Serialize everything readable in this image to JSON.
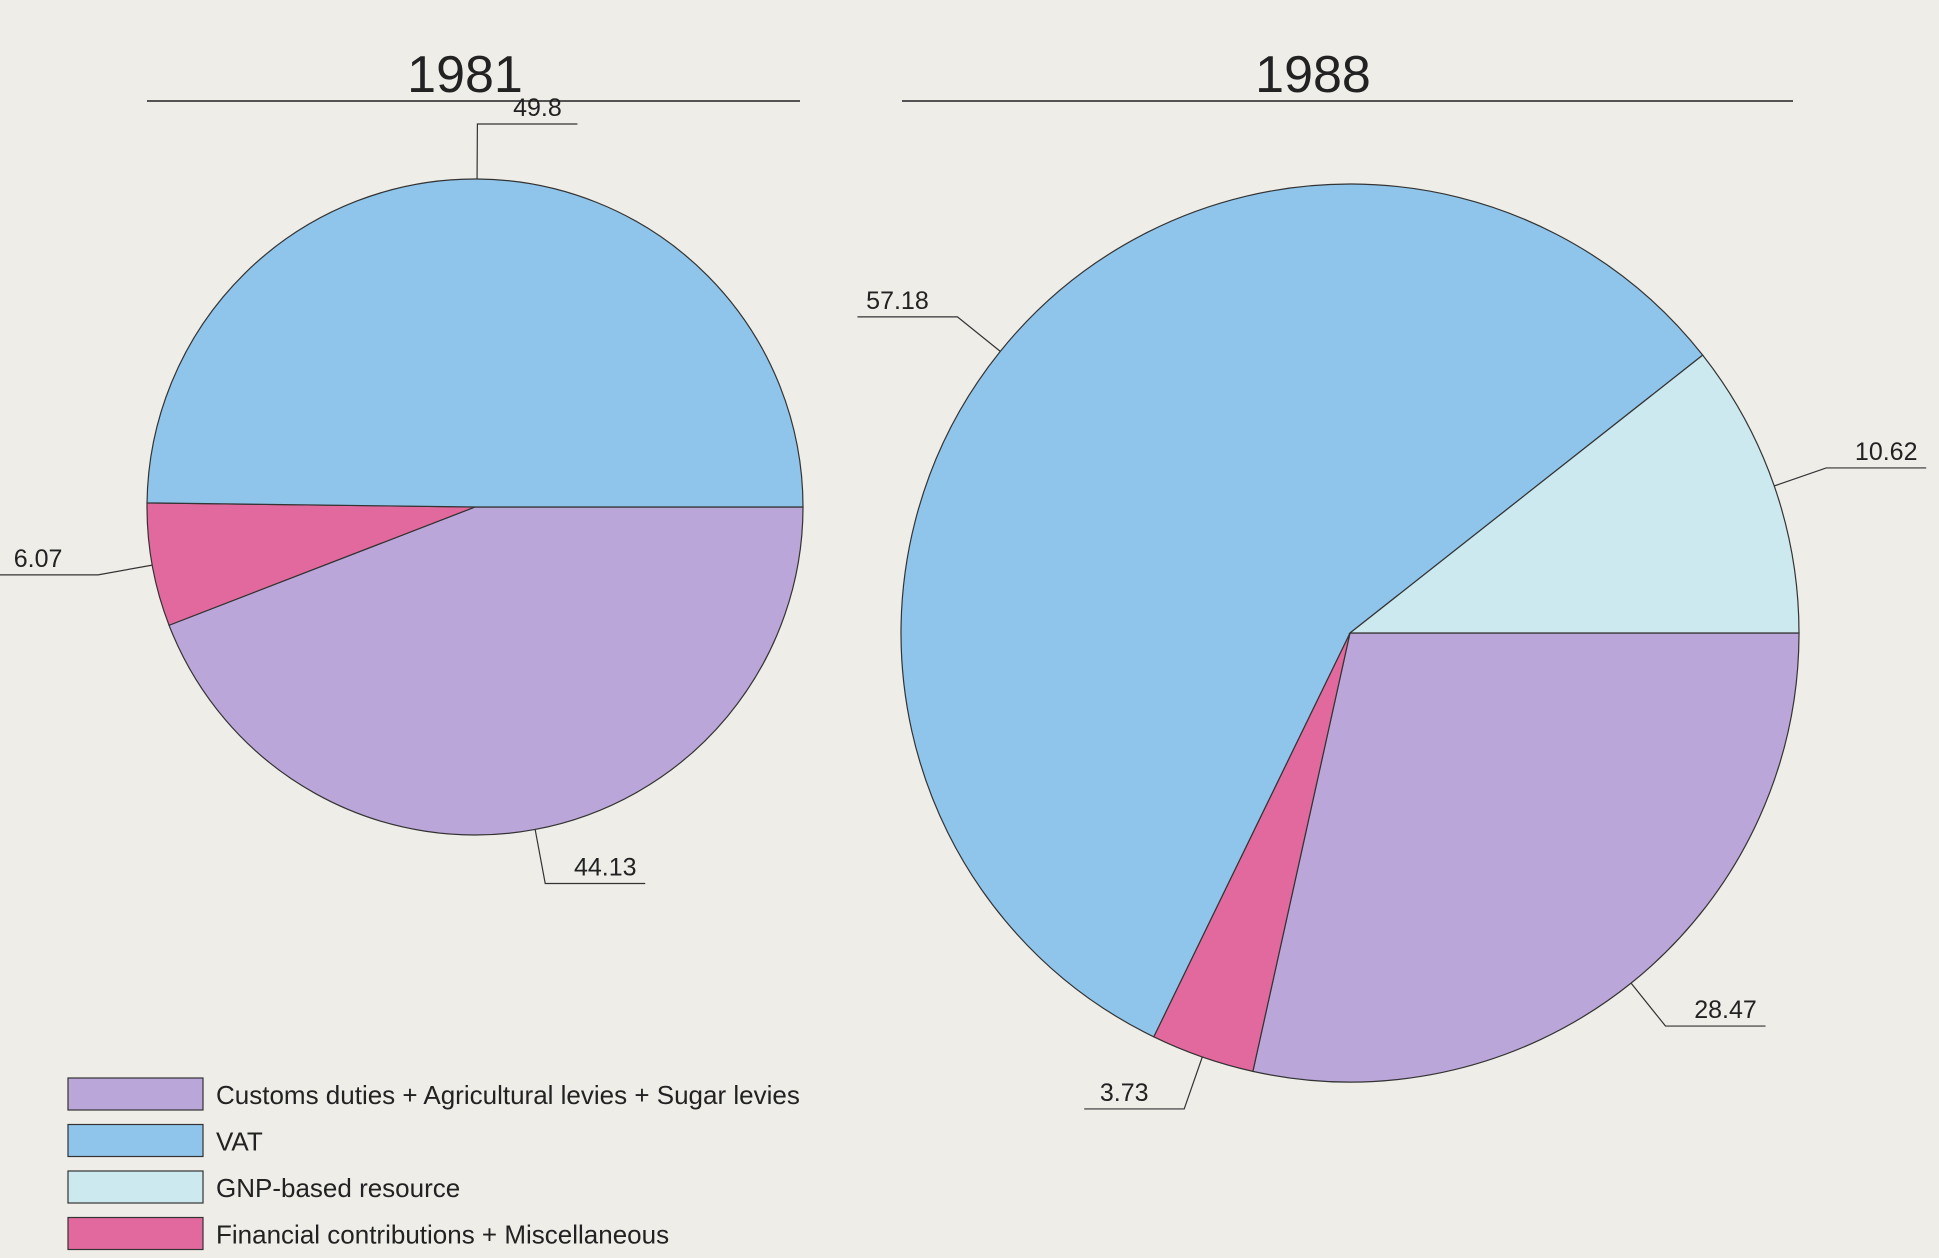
{
  "chart_data": [
    {
      "type": "pie",
      "title": "1981",
      "values": [
        44.13,
        6.07,
        49.8
      ],
      "colors": [
        "#baa6d8",
        "#e2699d",
        "#8fc5ea"
      ]
    },
    {
      "type": "pie",
      "title": "1988",
      "values": [
        28.47,
        3.73,
        57.18,
        10.62
      ],
      "colors": [
        "#baa6d8",
        "#e2699d",
        "#8fc5ea",
        "#cbe9ef"
      ]
    }
  ],
  "legend": {
    "items": [
      {
        "name": "Customs duties + Agricultural levies + Sugar levies",
        "color": "#baa6d8"
      },
      {
        "name": "VAT",
        "color": "#8fc5ea"
      },
      {
        "name": "GNP-based resource",
        "color": "#cbe9ef"
      },
      {
        "name": "Financial contributions + Miscellaneous",
        "color": "#e2699d"
      }
    ]
  }
}
